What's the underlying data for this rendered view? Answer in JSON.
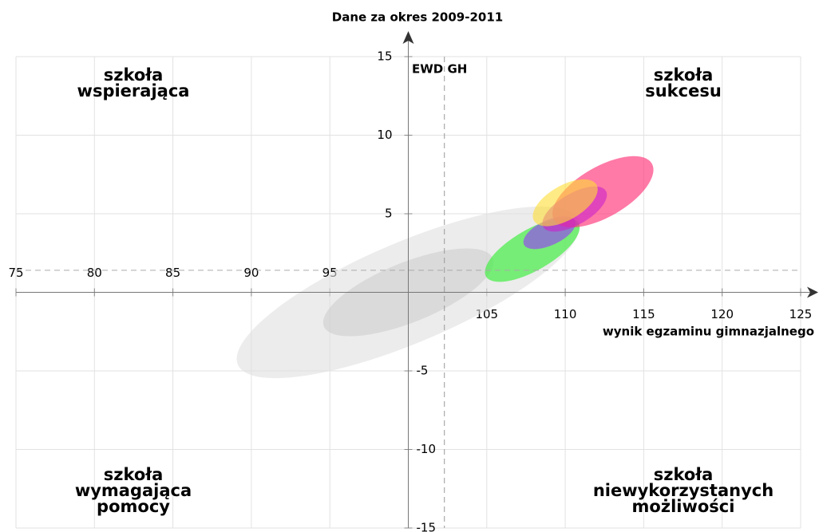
{
  "chart_data": {
    "type": "ellipse",
    "title": "Dane za okres 2009-2011",
    "ylabel": "EWD GH",
    "xlabel": "wynik egzaminu gimnazjalnego",
    "quadrants": {
      "top_left": [
        "szkoła",
        "wspierająca"
      ],
      "top_right": [
        "szkoła",
        "sukcesu"
      ],
      "bottom_left": [
        "szkoła",
        "wymagająca",
        "pomocy"
      ],
      "bottom_right": [
        "szkoła",
        "niewykorzystanych",
        "możliwości"
      ]
    },
    "xlim": [
      75,
      125
    ],
    "ylim": [
      -15,
      15
    ],
    "xticks": [
      75,
      80,
      85,
      90,
      95,
      105,
      110,
      115,
      120,
      125
    ],
    "yticks": [
      15,
      10,
      5,
      -5,
      -10,
      -15
    ],
    "grid": true,
    "reference": {
      "x": 102.3,
      "y": 1.4
    },
    "ellipses": [
      {
        "x": 100,
        "y": 0,
        "rx": 11.8,
        "ry": 3.2,
        "angle": -23,
        "color": "#e0e0e0",
        "opacity": 0.6
      },
      {
        "x": 100,
        "y": 0,
        "rx": 5.8,
        "ry": 1.9,
        "angle": -22,
        "color": "#c8c8c8",
        "opacity": 0.5
      },
      {
        "x": 107.9,
        "y": 2.7,
        "rx": 3.4,
        "ry": 1.3,
        "angle": -30,
        "color": "#44ee44",
        "opacity": 0.7
      },
      {
        "x": 109,
        "y": 3.8,
        "rx": 1.8,
        "ry": 0.8,
        "angle": -25,
        "color": "#9933ff",
        "opacity": 0.6
      },
      {
        "x": 112.4,
        "y": 6.4,
        "rx": 3.6,
        "ry": 1.6,
        "angle": -30,
        "color": "#ff3377",
        "opacity": 0.65
      },
      {
        "x": 110.6,
        "y": 5.3,
        "rx": 2.3,
        "ry": 1.0,
        "angle": -30,
        "color": "#cc22cc",
        "opacity": 0.6
      },
      {
        "x": 110,
        "y": 5.7,
        "rx": 2.3,
        "ry": 1.1,
        "angle": -30,
        "color": "#ffdd33",
        "opacity": 0.6
      }
    ]
  }
}
